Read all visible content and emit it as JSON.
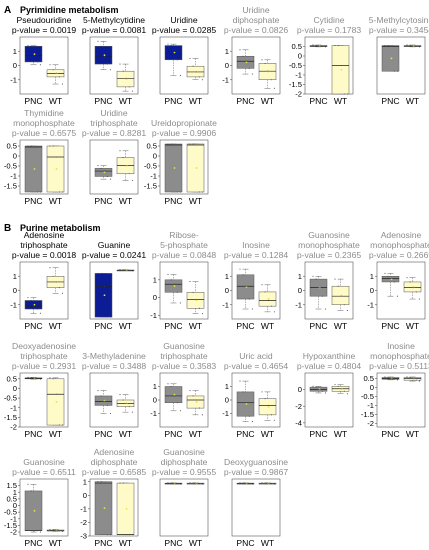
{
  "chart_data": {
    "type": "boxplot",
    "groups": [
      "PNC",
      "WT"
    ],
    "colors": {
      "pnc_significant": "#0b1c94",
      "pnc_nonsignificant": "#8c8c8c",
      "wt": "#fffbc9",
      "title_significant": "#000000",
      "title_nonsignificant": "#8c8c8c",
      "mean_marker": "#e8e23a"
    },
    "sections": [
      {
        "letter": "A",
        "name": "Pyrimidine metabolism",
        "panels": [
          {
            "compound": [
              "Pseudouridine"
            ],
            "p_value": "p-value = 0.0019",
            "significant": true,
            "ylim": [
              -2,
              2
            ],
            "yticks": [
              1,
              0,
              -1
            ],
            "pnc": {
              "q1": 0.25,
              "median": 0.7,
              "q3": 1.35,
              "whislo": 0.05,
              "whishi": 1.4
            },
            "wt": {
              "q1": -0.8,
              "median": -0.55,
              "q3": -0.3,
              "whislo": -1.3,
              "whishi": 0.05
            }
          },
          {
            "compound": [
              "5-Methylcytidine"
            ],
            "p_value": "p-value = 0.0081",
            "significant": true,
            "ylim": [
              -2,
              2
            ],
            "yticks": [],
            "pnc": {
              "q1": 0.1,
              "median": 0.6,
              "q3": 1.35,
              "whislo": -0.3,
              "whishi": 1.7
            },
            "wt": {
              "q1": -1.5,
              "median": -0.9,
              "q3": -0.4,
              "whislo": -1.8,
              "whishi": 0.1
            }
          },
          {
            "compound": [
              "Uridine"
            ],
            "p_value": "p-value = 0.0285",
            "significant": true,
            "ylim": [
              -2,
              2
            ],
            "yticks": [],
            "pnc": {
              "q1": 0.4,
              "median": 0.85,
              "q3": 1.4,
              "whislo": -0.7,
              "whishi": 1.5
            },
            "wt": {
              "q1": -0.8,
              "median": -0.45,
              "q3": -0.05,
              "whislo": -1.0,
              "whishi": 0.5
            }
          },
          {
            "compound": [
              "Uridine",
              "diphosphate"
            ],
            "p_value": "p-value = 0.0826",
            "significant": false,
            "ylim": [
              -2,
              2
            ],
            "yticks": [
              1,
              0,
              -1
            ],
            "pnc": {
              "q1": -0.2,
              "median": 0.3,
              "q3": 0.65,
              "whislo": -0.6,
              "whishi": 1.1
            },
            "wt": {
              "q1": -1.0,
              "median": -0.4,
              "q3": 0.15,
              "whislo": -1.6,
              "whishi": 0.4
            }
          },
          {
            "compound": [
              "Cytidine"
            ],
            "p_value": "p-value = 0.1783",
            "significant": false,
            "ylim": [
              -2,
              1
            ],
            "yticks": [
              0.5,
              0,
              -0.5,
              -1,
              -1.5,
              -2
            ],
            "pnc": {
              "q1": 0.5,
              "median": 0.52,
              "q3": 0.55,
              "whislo": 0.48,
              "whishi": 0.58
            },
            "wt": {
              "q1": -2.0,
              "median": -0.5,
              "q3": 0.55,
              "whislo": -2.0,
              "whishi": 0.55
            }
          },
          {
            "compound": [
              "5-Methylcytosine"
            ],
            "p_value": "p-value = 0.3454",
            "significant": false,
            "ylim": [
              -2,
              1
            ],
            "yticks": [],
            "pnc": {
              "q1": -0.8,
              "median": 0.5,
              "q3": 0.55,
              "whislo": -0.8,
              "whishi": 0.55
            },
            "wt": {
              "q1": 0.5,
              "median": 0.52,
              "q3": 0.55,
              "whislo": 0.48,
              "whishi": 0.58
            }
          },
          {
            "compound": [
              "Thymidine",
              "monophosphate"
            ],
            "p_value": "p-value = 0.6575",
            "significant": false,
            "ylim": [
              -1.9,
              0.8
            ],
            "yticks": [
              0.5,
              0,
              -0.5,
              -1,
              -1.5
            ],
            "pnc": {
              "q1": -1.8,
              "median": 0.45,
              "q3": 0.5,
              "whislo": -1.8,
              "whishi": 0.5
            },
            "wt": {
              "q1": -1.8,
              "median": -0.05,
              "q3": 0.5,
              "whislo": -1.8,
              "whishi": 0.5
            }
          },
          {
            "compound": [
              "Uridine",
              "triphosphate"
            ],
            "p_value": "p-value = 0.8281",
            "significant": false,
            "ylim": [
              -2,
              2
            ],
            "yticks": [],
            "pnc": {
              "q1": -0.7,
              "median": -0.3,
              "q3": -0.1,
              "whislo": -0.9,
              "whishi": 0.1
            },
            "wt": {
              "q1": -0.5,
              "median": 0.1,
              "q3": 0.7,
              "whislo": -1.0,
              "whishi": 1.2
            }
          },
          {
            "compound": [
              "Ureidopropionate"
            ],
            "p_value": "p-value = 0.9906",
            "significant": false,
            "ylim": [
              -1.9,
              0.8
            ],
            "yticks": [
              0.5,
              0,
              -0.5,
              -1,
              -1.5
            ],
            "pnc": {
              "q1": -1.8,
              "median": 0.55,
              "q3": 0.6,
              "whislo": -1.8,
              "whishi": 0.6
            },
            "wt": {
              "q1": -1.8,
              "median": 0.55,
              "q3": 0.6,
              "whislo": -1.8,
              "whishi": 0.6
            }
          }
        ]
      },
      {
        "letter": "B",
        "name": "Purine metabolism",
        "panels": [
          {
            "compound": [
              "Adenosine",
              "triphosphate"
            ],
            "p_value": "p-value = 0.0018",
            "significant": true,
            "ylim": [
              -2,
              2
            ],
            "yticks": [
              1,
              0,
              -1
            ],
            "pnc": {
              "q1": -1.3,
              "median": -1.1,
              "q3": -0.7,
              "whislo": -1.6,
              "whishi": -0.5
            },
            "wt": {
              "q1": 0.2,
              "median": 0.6,
              "q3": 1.0,
              "whislo": -0.2,
              "whishi": 1.6
            }
          },
          {
            "compound": [
              "Guanine"
            ],
            "p_value": "p-value = 0.0241",
            "significant": true,
            "ylim": [
              -2,
              1
            ],
            "yticks": [],
            "pnc": {
              "q1": -1.9,
              "median": -0.3,
              "q3": 0.4,
              "whislo": -1.9,
              "whishi": 0.4
            },
            "wt": {
              "q1": 0.55,
              "median": 0.56,
              "q3": 0.58,
              "whislo": 0.54,
              "whishi": 0.6
            }
          },
          {
            "compound": [
              "Ribose-",
              "5-phosphate"
            ],
            "p_value": "p-value = 0.0848",
            "significant": false,
            "ylim": [
              -1.2,
              2
            ],
            "yticks": [
              1,
              0,
              -1
            ],
            "pnc": {
              "q1": 0.3,
              "median": 0.75,
              "q3": 1.0,
              "whislo": -0.3,
              "whishi": 1.3
            },
            "wt": {
              "q1": -0.6,
              "median": -0.1,
              "q3": 0.3,
              "whislo": -0.9,
              "whishi": 0.9
            }
          },
          {
            "compound": [
              "Inosine"
            ],
            "p_value": "p-value = 0.1284",
            "significant": false,
            "ylim": [
              -2,
              2
            ],
            "yticks": [
              1,
              0,
              -1
            ],
            "pnc": {
              "q1": -0.6,
              "median": 0.3,
              "q3": 1.1,
              "whislo": -1.3,
              "whishi": 1.5
            },
            "wt": {
              "q1": -1.1,
              "median": -0.7,
              "q3": -0.1,
              "whislo": -1.5,
              "whishi": 0.4
            }
          },
          {
            "compound": [
              "Guanosine",
              "monophosphate"
            ],
            "p_value": "p-value = 0.2365",
            "significant": false,
            "ylim": [
              -2,
              2
            ],
            "yticks": [
              1,
              0,
              -1
            ],
            "pnc": {
              "q1": -0.4,
              "median": 0.2,
              "q3": 0.8,
              "whislo": -1.3,
              "whishi": 1.0
            },
            "wt": {
              "q1": -1.0,
              "median": -0.4,
              "q3": 0.3,
              "whislo": -1.4,
              "whishi": 0.8
            }
          },
          {
            "compound": [
              "Adenosine",
              "monophosphate"
            ],
            "p_value": "p-value = 0.2669",
            "significant": false,
            "ylim": [
              -2,
              2
            ],
            "yticks": [
              1,
              0,
              -1
            ],
            "pnc": {
              "q1": 0.6,
              "median": 0.85,
              "q3": 1.0,
              "whislo": -0.4,
              "whishi": 1.2
            },
            "wt": {
              "q1": -0.1,
              "median": 0.2,
              "q3": 0.6,
              "whislo": -0.6,
              "whishi": 0.9
            }
          },
          {
            "compound": [
              "Deoxyadenosine",
              "triphosphate"
            ],
            "p_value": "p-value = 0.2931",
            "significant": false,
            "ylim": [
              -2,
              0.8
            ],
            "yticks": [
              0.5,
              0,
              -0.5,
              -1,
              -1.5,
              -2
            ],
            "pnc": {
              "q1": 0.5,
              "median": 0.52,
              "q3": 0.55,
              "whislo": 0.48,
              "whishi": 0.58
            },
            "wt": {
              "q1": -1.9,
              "median": -0.3,
              "q3": 0.5,
              "whislo": -1.9,
              "whishi": 0.55
            }
          },
          {
            "compound": [
              "3-Methyladenine"
            ],
            "p_value": "p-value = 0.3488",
            "significant": false,
            "ylim": [
              -2,
              2
            ],
            "yticks": [],
            "pnc": {
              "q1": -0.4,
              "median": -0.1,
              "q3": 0.3,
              "whislo": -1.0,
              "whishi": 0.7
            },
            "wt": {
              "q1": -0.5,
              "median": -0.25,
              "q3": 0.0,
              "whislo": -0.9,
              "whishi": 0.4
            }
          },
          {
            "compound": [
              "Guanosine",
              "triphosphate"
            ],
            "p_value": "p-value = 0.3583",
            "significant": false,
            "ylim": [
              -2,
              2
            ],
            "yticks": [
              1,
              0,
              -1
            ],
            "pnc": {
              "q1": -0.2,
              "median": 0.3,
              "q3": 1.0,
              "whislo": -0.8,
              "whishi": 1.2
            },
            "wt": {
              "q1": -0.6,
              "median": 0.0,
              "q3": 0.3,
              "whislo": -1.1,
              "whishi": 0.7
            }
          },
          {
            "compound": [
              "Uric acid"
            ],
            "p_value": "p-value = 0.4654",
            "significant": false,
            "ylim": [
              -2,
              2
            ],
            "yticks": [
              1,
              0,
              -1
            ],
            "pnc": {
              "q1": -1.2,
              "median": -0.2,
              "q3": 0.6,
              "whislo": -1.6,
              "whishi": 1.4
            },
            "wt": {
              "q1": -1.1,
              "median": -0.4,
              "q3": 0.1,
              "whislo": -1.5,
              "whishi": 0.6
            }
          },
          {
            "compound": [
              "Hypoxanthine"
            ],
            "p_value": "p-value = 0.4804",
            "significant": false,
            "ylim": [
              -4.5,
              2
            ],
            "yticks": [
              0,
              -2,
              -4
            ],
            "pnc": {
              "q1": -0.2,
              "median": 0.0,
              "q3": 0.3,
              "whislo": -0.4,
              "whishi": 0.4
            },
            "wt": {
              "q1": -0.2,
              "median": 0.1,
              "q3": 0.4,
              "whislo": -0.5,
              "whishi": 0.6
            }
          },
          {
            "compound": [
              "Inosine",
              "monophosphate"
            ],
            "p_value": "p-value = 0.5113",
            "significant": false,
            "ylim": [
              -2.2,
              0.8
            ],
            "yticks": [
              0.5,
              0,
              -0.5,
              -1,
              -1.5,
              -2
            ],
            "pnc": {
              "q1": 0.45,
              "median": 0.5,
              "q3": 0.55,
              "whislo": 0.42,
              "whishi": 0.58
            },
            "wt": {
              "q1": 0.4,
              "median": 0.5,
              "q3": 0.55,
              "whislo": 0.35,
              "whishi": 0.58
            }
          },
          {
            "compound": [
              "Guanosine"
            ],
            "p_value": "p-value = 0.6511",
            "significant": false,
            "ylim": [
              -2.3,
              2
            ],
            "yticks": [
              1.5,
              1,
              0.5,
              0,
              -0.5,
              -1,
              -1.5,
              -2
            ],
            "pnc": {
              "q1": -1.9,
              "median": -1.9,
              "q3": 1.1,
              "whislo": -2.0,
              "whishi": 1.6
            },
            "wt": {
              "q1": -1.9,
              "median": -1.9,
              "q3": -1.85,
              "whislo": -1.95,
              "whishi": -1.8
            }
          },
          {
            "compound": [
              "Adenosine",
              "diphosphate"
            ],
            "p_value": "p-value = 0.6585",
            "significant": false,
            "ylim": [
              -3,
              1.2
            ],
            "yticks": [
              1,
              0,
              -1,
              -2,
              -3
            ],
            "pnc": {
              "q1": -2.9,
              "median": 0.9,
              "q3": 1.0,
              "whislo": -2.9,
              "whishi": 1.0
            },
            "wt": {
              "q1": -2.9,
              "median": -2.9,
              "q3": 0.9,
              "whislo": -2.9,
              "whishi": 0.9
            }
          },
          {
            "compound": [
              "Guanosine",
              "diphosphate"
            ],
            "p_value": "p-value = 0.9555",
            "significant": false,
            "ylim": [
              -3,
              0.6
            ],
            "yticks": [],
            "pnc": {
              "q1": 0.3,
              "median": 0.32,
              "q3": 0.34,
              "whislo": 0.28,
              "whishi": 0.36
            },
            "wt": {
              "q1": 0.3,
              "median": 0.32,
              "q3": 0.34,
              "whislo": 0.28,
              "whishi": 0.36
            }
          },
          {
            "compound": [
              "Deoxyguanosine"
            ],
            "p_value": "p-value = 0.9867",
            "significant": false,
            "ylim": [
              -3,
              0.6
            ],
            "yticks": [],
            "pnc": {
              "q1": 0.3,
              "median": 0.32,
              "q3": 0.34,
              "whislo": 0.28,
              "whishi": 0.36
            },
            "wt": {
              "q1": 0.3,
              "median": 0.32,
              "q3": 0.34,
              "whislo": 0.28,
              "whishi": 0.36
            }
          }
        ]
      }
    ]
  }
}
